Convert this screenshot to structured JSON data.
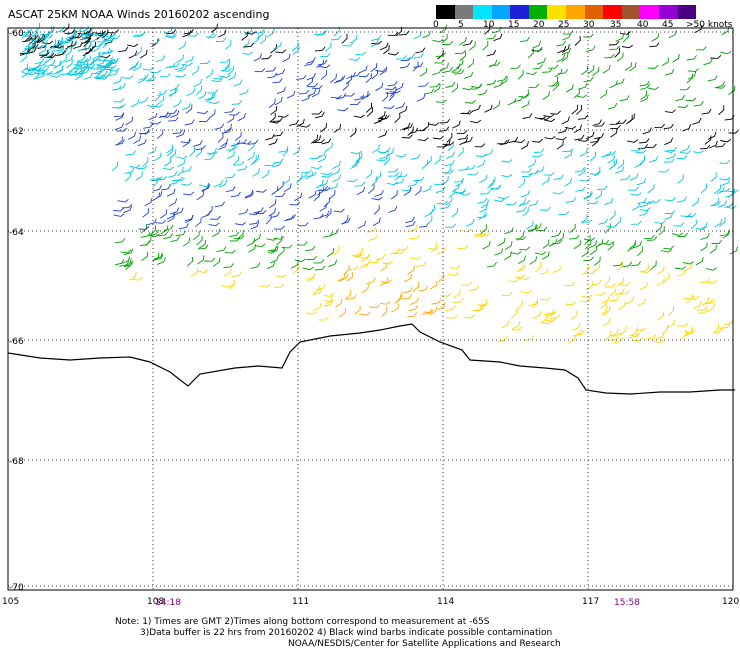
{
  "title": "ASCAT 25KM NOAA Winds 20160202 ascending",
  "legend": {
    "labels": [
      "0",
      "5",
      "10",
      "15",
      "20",
      "25",
      "30",
      "35",
      "40",
      "45",
      ">50 knots"
    ],
    "colors": [
      "#000000",
      "#7a7a7a",
      "#00e5ff",
      "#00a6ff",
      "#1f1fd6",
      "#00b000",
      "#ffe000",
      "#ffa500",
      "#e06000",
      "#ff0000",
      "#a0522d",
      "#ff00ff",
      "#9400d3",
      "#4b0082"
    ]
  },
  "axes": {
    "latitudes": [
      "-60",
      "-62",
      "-64",
      "-66",
      "-68",
      "-70"
    ],
    "longitudes": [
      "105",
      "108",
      "111",
      "114",
      "117",
      "120"
    ]
  },
  "times": {
    "start": "14:18",
    "end": "15:58"
  },
  "note": {
    "line1": "Note: 1) Times are GMT 2)Times along bottom correspond to measurement at -65S",
    "line2": "3)Data buffer is 22 hrs from 20160202 4) Black wind barbs indicate possible contamination",
    "line3": "NOAA/NESDIS/Center for Satellite Applications and Research"
  }
}
